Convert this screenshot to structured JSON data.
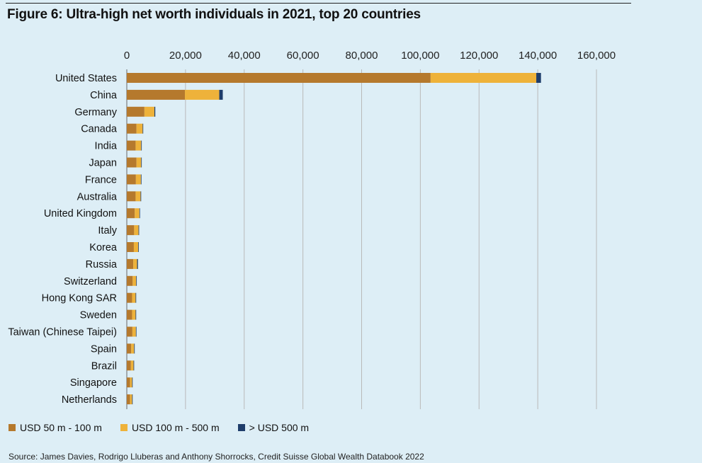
{
  "figure_title": "Figure 6: Ultra-high net worth individuals in 2021, top 20 countries",
  "source": "Source: James Davies, Rodrigo Lluberas and Anthony Shorrocks, Credit Suisse Global Wealth Databook 2022",
  "colors": {
    "background": "#ddeef6",
    "series_1": "#b5792d",
    "series_2": "#eeb23a",
    "series_3": "#1e3d6b",
    "grid": "#b9b9b9"
  },
  "chart_data": {
    "type": "bar",
    "orientation": "horizontal",
    "stacked": true,
    "categories": [
      "United States",
      "China",
      "Germany",
      "Canada",
      "India",
      "Japan",
      "France",
      "Australia",
      "United Kingdom",
      "Italy",
      "Korea",
      "Russia",
      "Switzerland",
      "Hong Kong SAR",
      "Sweden",
      "Taiwan (Chinese Taipei)",
      "Spain",
      "Brazil",
      "Singapore",
      "Netherlands"
    ],
    "series": [
      {
        "name": "USD 50 m - 100 m",
        "values": [
          103500,
          19800,
          6000,
          3300,
          3000,
          3300,
          3100,
          3000,
          2700,
          2500,
          2400,
          2200,
          2000,
          1800,
          1800,
          1900,
          1500,
          1400,
          1100,
          1100
        ]
      },
      {
        "name": "USD 100 m - 500 m",
        "values": [
          36000,
          11700,
          3400,
          2100,
          1900,
          1600,
          1700,
          1700,
          1600,
          1500,
          1500,
          1300,
          1200,
          1200,
          1200,
          1200,
          1000,
          900,
          700,
          700
        ]
      },
      {
        "name": "> USD 500 m",
        "values": [
          1600,
          1200,
          300,
          120,
          150,
          100,
          100,
          100,
          120,
          80,
          100,
          300,
          100,
          120,
          80,
          60,
          50,
          60,
          40,
          40
        ]
      }
    ],
    "xlim": [
      0,
      160000
    ],
    "xticks": [
      0,
      20000,
      40000,
      60000,
      80000,
      100000,
      120000,
      140000,
      160000
    ],
    "xtick_labels": [
      "0",
      "20,000",
      "40,000",
      "60,000",
      "80,000",
      "100,000",
      "120,000",
      "140,000",
      "160,000"
    ],
    "x_axis_position": "top",
    "grid": "vertical",
    "legend_position": "bottom-left"
  }
}
